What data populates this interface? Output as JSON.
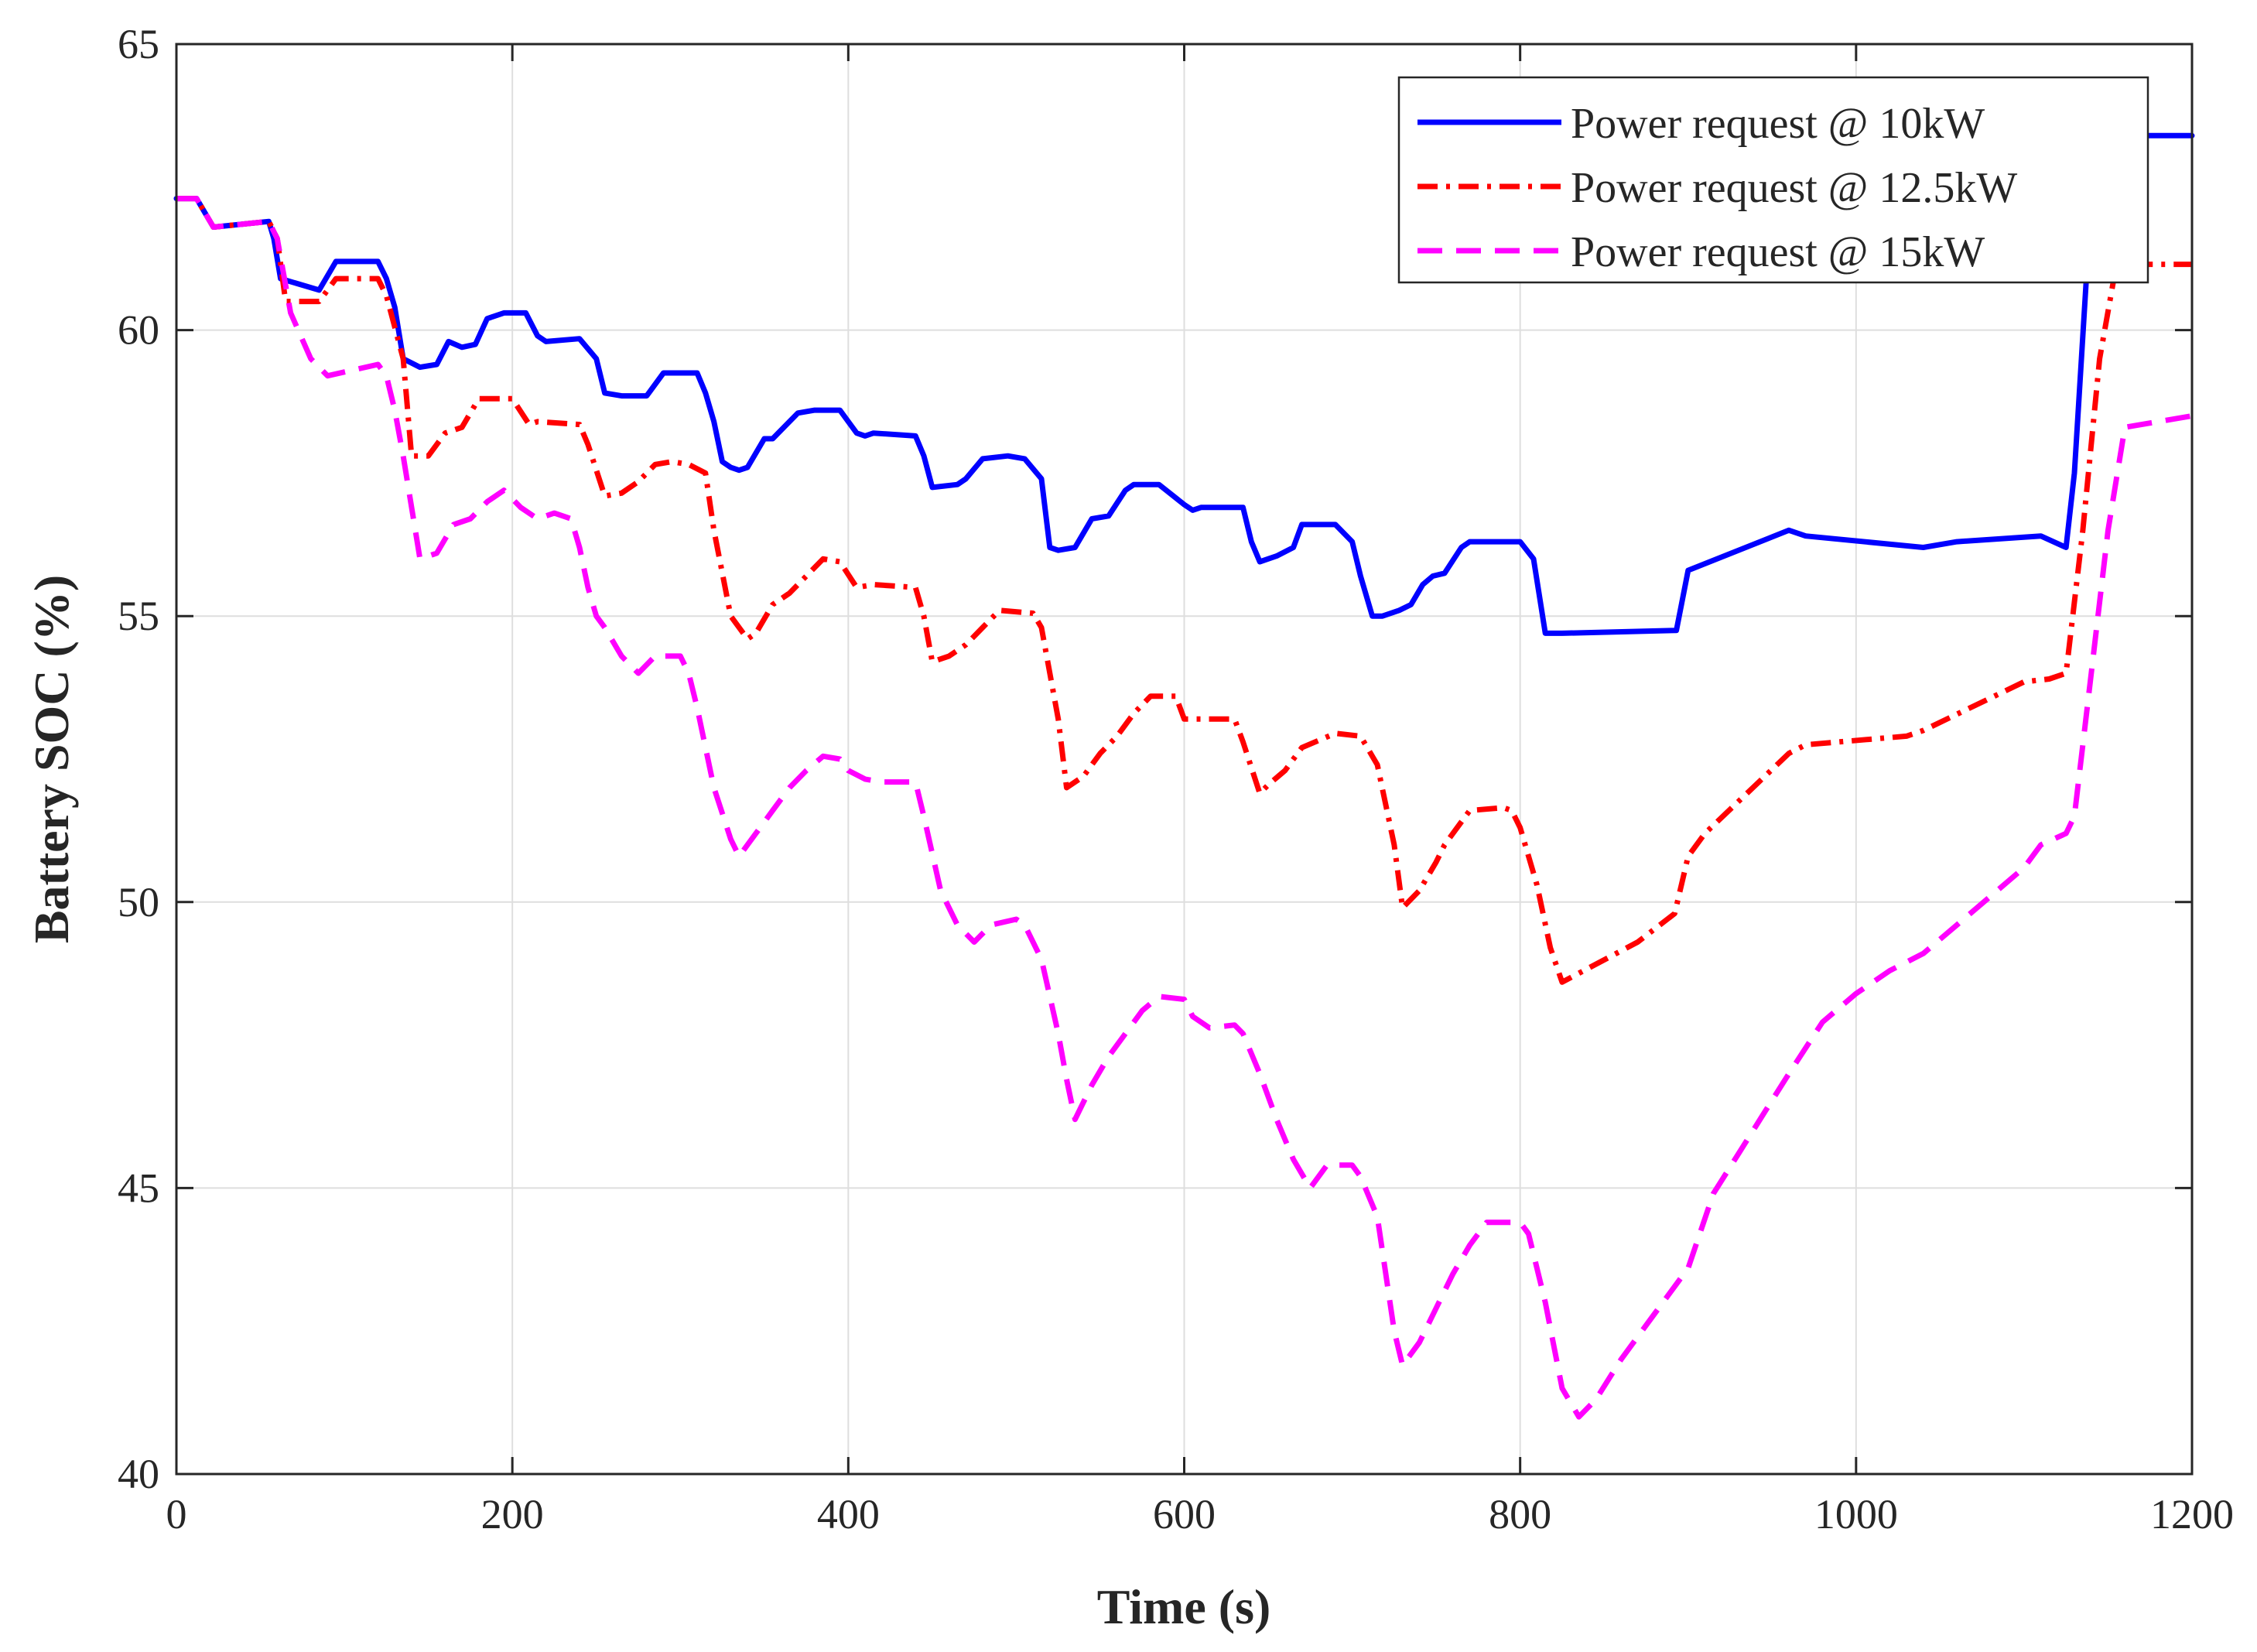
{
  "chart_data": {
    "type": "line",
    "title": "",
    "xlabel": "Time (s)",
    "ylabel": "Battery SOC (%)",
    "xlim": [
      0,
      1200
    ],
    "ylim": [
      40,
      65
    ],
    "xticks": [
      0,
      200,
      400,
      600,
      800,
      1000,
      1200
    ],
    "yticks": [
      40,
      45,
      50,
      55,
      60,
      65
    ],
    "grid": true,
    "legend_position": "top-right",
    "series": [
      {
        "name": "Power request @ 10kW",
        "color": "#0000ff",
        "style": "solid",
        "x": [
          0,
          12,
          22,
          55,
          58,
          62,
          85,
          95,
          120,
          125,
          130,
          135,
          145,
          155,
          162,
          170,
          178,
          185,
          195,
          208,
          215,
          220,
          240,
          250,
          255,
          265,
          280,
          290,
          310,
          315,
          320,
          325,
          330,
          335,
          340,
          350,
          355,
          370,
          380,
          395,
          405,
          410,
          415,
          440,
          445,
          450,
          465,
          470,
          480,
          495,
          505,
          515,
          520,
          525,
          535,
          545,
          555,
          565,
          570,
          575,
          580,
          585,
          600,
          605,
          610,
          635,
          640,
          645,
          655,
          665,
          670,
          690,
          700,
          705,
          712,
          718,
          728,
          735,
          742,
          748,
          755,
          765,
          770,
          780,
          800,
          808,
          815,
          825,
          893,
          900,
          960,
          970,
          1040,
          1060,
          1110,
          1125,
          1130,
          1140,
          1148,
          1200
        ],
        "y": [
          62.3,
          62.3,
          61.8,
          61.9,
          61.6,
          60.9,
          60.7,
          61.2,
          61.2,
          60.9,
          60.4,
          59.5,
          59.35,
          59.4,
          59.8,
          59.7,
          59.75,
          60.2,
          60.3,
          60.3,
          59.9,
          59.8,
          59.85,
          59.5,
          58.9,
          58.85,
          58.85,
          59.25,
          59.25,
          58.9,
          58.4,
          57.7,
          57.6,
          57.55,
          57.6,
          58.1,
          58.1,
          58.55,
          58.6,
          58.6,
          58.2,
          58.15,
          58.2,
          58.15,
          57.8,
          57.25,
          57.3,
          57.4,
          57.75,
          57.8,
          57.75,
          57.4,
          56.2,
          56.15,
          56.2,
          56.7,
          56.75,
          57.2,
          57.3,
          57.3,
          57.3,
          57.3,
          56.95,
          56.85,
          56.9,
          56.9,
          56.3,
          55.95,
          56.05,
          56.2,
          56.6,
          56.6,
          56.3,
          55.7,
          55.0,
          55.0,
          55.1,
          55.2,
          55.55,
          55.7,
          55.75,
          56.2,
          56.3,
          56.3,
          56.3,
          56.0,
          54.7,
          54.7,
          54.75,
          55.8,
          56.5,
          56.4,
          56.2,
          56.3,
          56.4,
          56.2,
          57.5,
          62.3,
          63.4,
          63.4
        ]
      },
      {
        "name": "Power request @ 12.5kW",
        "color": "#ff0000",
        "style": "dash-dot",
        "x": [
          0,
          12,
          22,
          55,
          60,
          65,
          85,
          95,
          120,
          125,
          135,
          140,
          150,
          160,
          170,
          180,
          190,
          200,
          210,
          215,
          240,
          245,
          255,
          265,
          275,
          285,
          295,
          305,
          315,
          320,
          330,
          340,
          345,
          355,
          365,
          385,
          395,
          405,
          415,
          440,
          445,
          450,
          460,
          470,
          480,
          490,
          510,
          515,
          525,
          530,
          540,
          550,
          560,
          570,
          580,
          595,
          600,
          610,
          630,
          635,
          645,
          650,
          660,
          670,
          690,
          705,
          715,
          725,
          730,
          740,
          750,
          755,
          760,
          770,
          790,
          795,
          800,
          810,
          818,
          825,
          870,
          892,
          900,
          910,
          960,
          970,
          1030,
          1040,
          1100,
          1115,
          1125,
          1135,
          1145,
          1155,
          1200
        ],
        "y": [
          62.3,
          62.3,
          61.8,
          61.9,
          61.6,
          60.5,
          60.5,
          60.9,
          60.9,
          60.6,
          59.5,
          57.8,
          57.8,
          58.2,
          58.3,
          58.8,
          58.8,
          58.8,
          58.35,
          58.4,
          58.35,
          58.0,
          57.1,
          57.15,
          57.35,
          57.65,
          57.7,
          57.65,
          57.5,
          56.5,
          55.0,
          54.6,
          54.7,
          55.2,
          55.4,
          56.0,
          55.95,
          55.5,
          55.55,
          55.5,
          55.0,
          54.2,
          54.3,
          54.5,
          54.8,
          55.1,
          55.05,
          54.8,
          53.2,
          52.0,
          52.2,
          52.6,
          52.9,
          53.3,
          53.6,
          53.6,
          53.2,
          53.2,
          53.2,
          52.8,
          51.9,
          52.05,
          52.3,
          52.7,
          52.95,
          52.9,
          52.4,
          51.0,
          49.9,
          50.2,
          50.7,
          51.0,
          51.2,
          51.6,
          51.65,
          51.6,
          51.3,
          50.3,
          49.2,
          48.6,
          49.3,
          49.8,
          50.8,
          51.2,
          52.6,
          52.75,
          52.9,
          53.0,
          53.85,
          53.9,
          54.0,
          56.5,
          59.5,
          61.15,
          61.15
        ]
      },
      {
        "name": "Power request @ 15kW",
        "color": "#ff00ff",
        "style": "dashed",
        "x": [
          0,
          12,
          22,
          55,
          60,
          68,
          80,
          90,
          120,
          125,
          130,
          135,
          145,
          155,
          165,
          175,
          185,
          195,
          205,
          215,
          225,
          235,
          240,
          245,
          250,
          255,
          265,
          275,
          285,
          300,
          305,
          310,
          320,
          330,
          335,
          345,
          355,
          365,
          375,
          385,
          395,
          400,
          410,
          420,
          440,
          445,
          455,
          465,
          475,
          485,
          500,
          505,
          515,
          525,
          530,
          535,
          545,
          555,
          565,
          575,
          585,
          600,
          605,
          615,
          630,
          635,
          645,
          655,
          665,
          675,
          685,
          700,
          705,
          715,
          720,
          725,
          730,
          740,
          750,
          760,
          770,
          780,
          795,
          800,
          805,
          815,
          825,
          835,
          845,
          860,
          880,
          900,
          915,
          930,
          945,
          960,
          980,
          1000,
          1020,
          1040,
          1060,
          1080,
          1100,
          1110,
          1125,
          1130,
          1140,
          1150,
          1160,
          1200
        ],
        "y": [
          62.3,
          62.3,
          61.8,
          61.9,
          61.6,
          60.3,
          59.5,
          59.2,
          59.4,
          59.2,
          58.6,
          57.8,
          56.0,
          56.1,
          56.6,
          56.7,
          57.0,
          57.2,
          56.9,
          56.7,
          56.8,
          56.7,
          56.2,
          55.5,
          55.0,
          54.8,
          54.3,
          54.0,
          54.3,
          54.3,
          54.0,
          53.4,
          52.0,
          51.1,
          50.8,
          51.2,
          51.6,
          52.0,
          52.3,
          52.55,
          52.5,
          52.3,
          52.15,
          52.1,
          52.1,
          51.5,
          50.2,
          49.6,
          49.3,
          49.6,
          49.7,
          49.6,
          49.0,
          47.7,
          46.9,
          46.2,
          46.8,
          47.3,
          47.7,
          48.1,
          48.35,
          48.3,
          48.0,
          47.8,
          47.85,
          47.7,
          47.0,
          46.2,
          45.5,
          45.0,
          45.4,
          45.4,
          45.2,
          44.5,
          43.5,
          42.5,
          41.9,
          42.3,
          42.9,
          43.5,
          44.0,
          44.4,
          44.4,
          44.4,
          44.2,
          43.0,
          41.5,
          41.0,
          41.3,
          42.0,
          42.8,
          43.6,
          44.9,
          45.6,
          46.3,
          47.0,
          47.9,
          48.4,
          48.8,
          49.1,
          49.6,
          50.1,
          50.6,
          51.0,
          51.2,
          51.5,
          54.0,
          56.5,
          58.3,
          58.5
        ]
      }
    ]
  }
}
